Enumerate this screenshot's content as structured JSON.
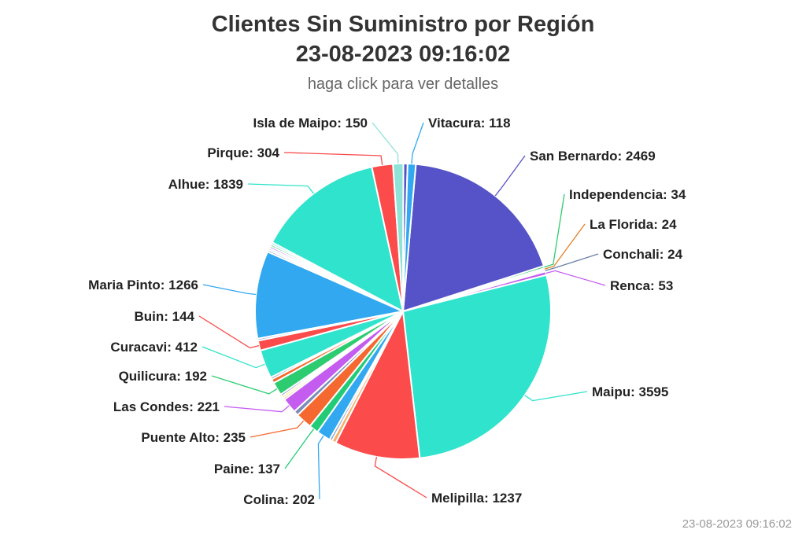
{
  "title_line1": "Clientes Sin Suministro por Región",
  "title_line2": "23-08-2023 09:16:02",
  "subtitle": "haga click para ver detalles",
  "footer_timestamp": "23-08-2023 09:16:02",
  "chart_data": {
    "type": "pie",
    "title": "Clientes Sin Suministro por Región 23-08-2023 09:16:02",
    "subtitle": "haga click para ver detalles",
    "slices": [
      {
        "name": "San Bernardo",
        "value": 2469,
        "color": "#5553c7",
        "label": "San Bernardo: 2469"
      },
      {
        "name": "Independencia",
        "value": 34,
        "color": "#2ecc71",
        "label": "Independencia: 34"
      },
      {
        "name": "La Florida",
        "value": 24,
        "color": "#e67e22",
        "label": "La Florida: 24"
      },
      {
        "name": "Conchali",
        "value": 24,
        "color": "#6c7fa8",
        "label": "Conchali: 24"
      },
      {
        "name": "Renca",
        "value": 53,
        "color": "#c45cf0",
        "label": "Renca: 53"
      },
      {
        "name": "Maipu",
        "value": 3595,
        "color": "#30e3cc",
        "label": "Maipu: 3595"
      },
      {
        "name": "Melipilla",
        "value": 1237,
        "color": "#fb4b4b",
        "label": "Melipilla: 1237"
      },
      {
        "name": "unlabeled-1",
        "value": 60,
        "color": "#f5b26b"
      },
      {
        "name": "unlabeled-2",
        "value": 40,
        "color": "#8fa4c8"
      },
      {
        "name": "Colina",
        "value": 202,
        "color": "#31a8f0",
        "label": "Colina: 202"
      },
      {
        "name": "Paine",
        "value": 137,
        "color": "#22cc77",
        "label": "Paine: 137"
      },
      {
        "name": "Puente Alto",
        "value": 235,
        "color": "#f5682f",
        "label": "Puente Alto: 235"
      },
      {
        "name": "unlabeled-3",
        "value": 70,
        "color": "#7b8db8"
      },
      {
        "name": "Las Condes",
        "value": 221,
        "color": "#c45cf0",
        "label": "Las Condes: 221"
      },
      {
        "name": "unlabeled-4",
        "value": 30,
        "color": "#f5b26b"
      },
      {
        "name": "unlabeled-5",
        "value": 30,
        "color": "#ffd93d"
      },
      {
        "name": "unlabeled-6",
        "value": 30,
        "color": "#5553c7"
      },
      {
        "name": "Quilicura",
        "value": 192,
        "color": "#2ecc71",
        "label": "Quilicura: 192"
      },
      {
        "name": "unlabeled-7",
        "value": 60,
        "color": "#f5682f"
      },
      {
        "name": "unlabeled-8",
        "value": 30,
        "color": "#6c7fa8"
      },
      {
        "name": "Curacavi",
        "value": 412,
        "color": "#30e3cc",
        "label": "Curacavi: 412"
      },
      {
        "name": "Buin",
        "value": 144,
        "color": "#fb4b4b",
        "label": "Buin: 144"
      },
      {
        "name": "unlabeled-9",
        "value": 30,
        "color": "#8fa4c8"
      },
      {
        "name": "Maria Pinto",
        "value": 1266,
        "color": "#31a8f0",
        "label": "Maria Pinto: 1266"
      },
      {
        "name": "unlabeled-10",
        "value": 30,
        "color": "#8fa4c8"
      },
      {
        "name": "unlabeled-11",
        "value": 30,
        "color": "#c9d2e8"
      },
      {
        "name": "unlabeled-12",
        "value": 30,
        "color": "#c45cf0"
      },
      {
        "name": "unlabeled-13",
        "value": 30,
        "color": "#2ecc71"
      },
      {
        "name": "unlabeled-14",
        "value": 30,
        "color": "#30e3cc"
      },
      {
        "name": "Alhue",
        "value": 1839,
        "color": "#30e3cc",
        "label": "Alhue: 1839"
      },
      {
        "name": "Pirque",
        "value": 304,
        "color": "#fb4b4b",
        "label": "Pirque: 304"
      },
      {
        "name": "Isla de Maipo",
        "value": 150,
        "color": "#8de3d6",
        "label": "Isla de Maipo: 150"
      },
      {
        "name": "unlabeled-15",
        "value": 60,
        "color": "#5553c7"
      },
      {
        "name": "Vitacura",
        "value": 118,
        "color": "#31a8f0",
        "label": "Vitacura: 118"
      }
    ],
    "data_labels": [
      {
        "text": "San Bernardo: 2469",
        "slice": 0
      },
      {
        "text": "Independencia: 34",
        "slice": 1
      },
      {
        "text": "La Florida: 24",
        "slice": 2
      },
      {
        "text": "Conchali: 24",
        "slice": 3
      },
      {
        "text": "Renca: 53",
        "slice": 4
      },
      {
        "text": "Maipu: 3595",
        "slice": 5
      },
      {
        "text": "Melipilla: 1237",
        "slice": 6
      },
      {
        "text": "Colina: 202",
        "slice": 9
      },
      {
        "text": "Paine: 137",
        "slice": 10
      },
      {
        "text": "Puente Alto: 235",
        "slice": 11
      },
      {
        "text": "Las Condes: 221",
        "slice": 13
      },
      {
        "text": "Quilicura: 192",
        "slice": 17
      },
      {
        "text": "Curacavi: 412",
        "slice": 20
      },
      {
        "text": "Buin: 144",
        "slice": 21
      },
      {
        "text": "Maria Pinto: 1266",
        "slice": 23
      },
      {
        "text": "Alhue: 1839",
        "slice": 29
      },
      {
        "text": "Pirque: 304",
        "slice": 30
      },
      {
        "text": "Isla de Maipo: 150",
        "slice": 31
      },
      {
        "text": "Vitacura: 118",
        "slice": 33
      }
    ]
  }
}
